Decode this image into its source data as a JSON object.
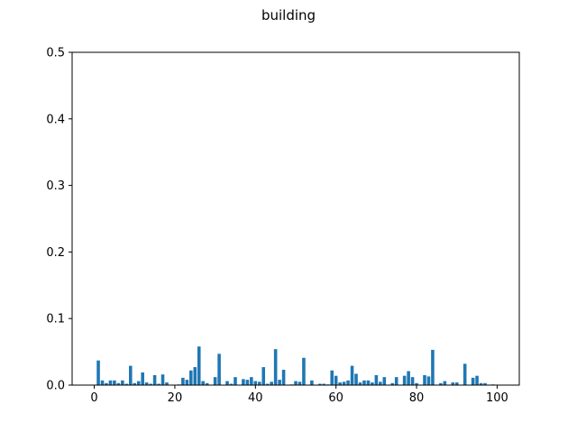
{
  "chart_data": {
    "type": "bar",
    "title": "building",
    "xlabel": "",
    "ylabel": "",
    "xlim": [
      -5.5,
      105.5
    ],
    "ylim": [
      0,
      0.5
    ],
    "x_ticks": [
      0,
      20,
      40,
      60,
      80,
      100
    ],
    "y_ticks": [
      0.0,
      0.1,
      0.2,
      0.3,
      0.4,
      0.5
    ],
    "x_tick_labels": [
      "0",
      "20",
      "40",
      "60",
      "80",
      "100"
    ],
    "y_tick_labels": [
      "0.0",
      "0.1",
      "0.2",
      "0.3",
      "0.4",
      "0.5"
    ],
    "bar_color": "#1f77b4",
    "grid": false,
    "x": [
      0,
      1,
      2,
      3,
      4,
      5,
      6,
      7,
      8,
      9,
      10,
      11,
      12,
      13,
      14,
      15,
      16,
      17,
      18,
      19,
      20,
      21,
      22,
      23,
      24,
      25,
      26,
      27,
      28,
      29,
      30,
      31,
      32,
      33,
      34,
      35,
      36,
      37,
      38,
      39,
      40,
      41,
      42,
      43,
      44,
      45,
      46,
      47,
      48,
      49,
      50,
      51,
      52,
      53,
      54,
      55,
      56,
      57,
      58,
      59,
      60,
      61,
      62,
      63,
      64,
      65,
      66,
      67,
      68,
      69,
      70,
      71,
      72,
      73,
      74,
      75,
      76,
      77,
      78,
      79,
      80,
      81,
      82,
      83,
      84,
      85,
      86,
      87,
      88,
      89,
      90,
      91,
      92,
      93,
      94,
      95,
      96,
      97,
      98,
      99,
      100
    ],
    "values": [
      0,
      0.037,
      0.007,
      0.003,
      0.007,
      0.007,
      0.003,
      0.007,
      0.002,
      0.029,
      0.003,
      0.006,
      0.019,
      0.004,
      0.002,
      0.015,
      0.002,
      0.016,
      0.004,
      0,
      0,
      0.001,
      0.011,
      0.008,
      0.022,
      0.027,
      0.058,
      0.006,
      0.003,
      0,
      0.012,
      0.047,
      0,
      0.006,
      0.002,
      0.012,
      0,
      0.009,
      0.008,
      0.012,
      0.006,
      0.005,
      0.027,
      0.002,
      0.005,
      0.054,
      0.008,
      0.023,
      0,
      0.001,
      0.006,
      0.005,
      0.041,
      0,
      0.007,
      0,
      0.002,
      0.002,
      0.001,
      0.022,
      0.014,
      0.004,
      0.005,
      0.007,
      0.029,
      0.017,
      0.004,
      0.007,
      0.007,
      0.004,
      0.015,
      0.005,
      0.012,
      0,
      0.003,
      0.012,
      0,
      0.014,
      0.021,
      0.012,
      0.003,
      0,
      0.015,
      0.013,
      0.053,
      0,
      0.003,
      0.006,
      0,
      0.004,
      0.004,
      0,
      0.032,
      0,
      0.011,
      0.014,
      0.003,
      0.003,
      0,
      0.001,
      0
    ]
  }
}
